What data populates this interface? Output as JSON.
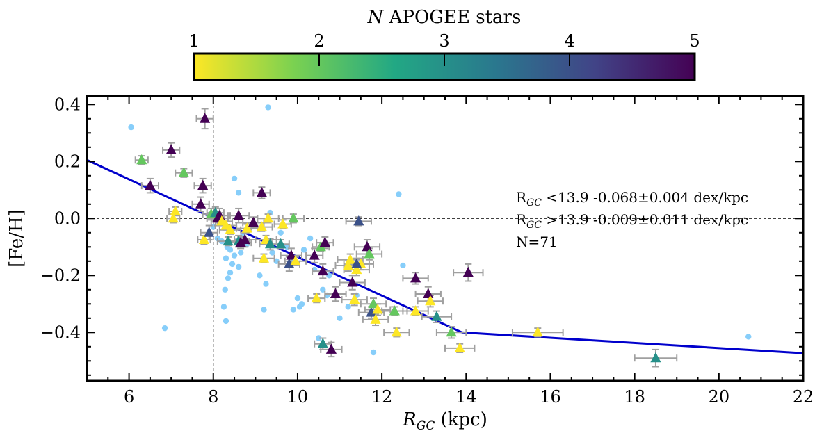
{
  "chart_data": {
    "type": "scatter",
    "xlabel": "R_GC (kpc)",
    "xlabel_main": "R",
    "xlabel_sub": "GC",
    "xlabel_unit": " (kpc)",
    "ylabel": "[Fe/H]",
    "xlim": [
      5,
      22
    ],
    "ylim": [
      -0.57,
      0.43
    ],
    "xticks": [
      6,
      8,
      10,
      12,
      14,
      16,
      18,
      20,
      22
    ],
    "yticks": [
      -0.4,
      -0.2,
      0.0,
      0.2,
      0.4
    ],
    "xtick_labels": [
      "6",
      "8",
      "10",
      "12",
      "14",
      "16",
      "18",
      "20",
      "22"
    ],
    "ytick_labels": [
      "−0.4",
      "−0.2",
      "0.0",
      "0.2",
      "0.4"
    ],
    "reference_lines": {
      "x": 8.0,
      "y": 0.0
    },
    "colorbar": {
      "label": "N APOGEE stars",
      "label_italic": "N",
      "label_rest": " APOGEE stars",
      "min": 1,
      "max": 5,
      "ticks": [
        1,
        2,
        3,
        4,
        5
      ],
      "tick_labels": [
        "1",
        "2",
        "3",
        "4",
        "5"
      ],
      "colormap": "viridis_r",
      "stops": [
        "#fde725",
        "#7ad151",
        "#22a884",
        "#2a788e",
        "#414487",
        "#440154"
      ]
    },
    "fit_lines": [
      {
        "x": [
          5,
          13.9
        ],
        "y": [
          0.2052,
          -0.4
        ],
        "color": "#0000cc"
      },
      {
        "x": [
          13.9,
          22
        ],
        "y": [
          -0.4,
          -0.4729
        ],
        "color": "#0000cc"
      }
    ],
    "annotations": [
      {
        "main": "R",
        "sub": "GC",
        "rest": " <13.9 -0.068±0.004 dex/kpc"
      },
      {
        "main": "R",
        "sub": "GC",
        "rest": " >13.9 -0.009±0.011 dex/kpc"
      },
      {
        "main": "N=71",
        "sub": "",
        "rest": ""
      }
    ],
    "background_points": {
      "color": "#87cefa",
      "x": [
        6.05,
        6.85,
        8.0,
        8.1,
        8.2,
        8.25,
        8.3,
        8.3,
        8.35,
        8.4,
        8.4,
        8.45,
        8.5,
        8.5,
        8.55,
        8.6,
        8.6,
        8.65,
        8.7,
        8.8,
        9.1,
        9.2,
        9.25,
        9.3,
        9.35,
        9.4,
        9.5,
        9.6,
        9.75,
        9.85,
        9.9,
        10.0,
        10.05,
        10.1,
        10.15,
        10.3,
        10.4,
        10.5,
        10.6,
        10.7,
        10.75,
        11.0,
        11.2,
        11.4,
        11.5,
        11.8,
        12.4,
        12.5,
        20.7,
        8.28,
        8.33,
        8.45
      ],
      "y": [
        0.32,
        -0.385,
        -0.03,
        -0.07,
        -0.08,
        -0.31,
        -0.36,
        -0.14,
        -0.21,
        -0.19,
        -0.11,
        -0.16,
        0.14,
        -0.13,
        -0.08,
        0.09,
        -0.17,
        -0.12,
        -0.06,
        -0.09,
        -0.2,
        -0.32,
        -0.23,
        0.39,
        0.02,
        -0.12,
        -0.15,
        -0.05,
        -0.1,
        -0.15,
        -0.32,
        -0.28,
        -0.31,
        -0.3,
        -0.11,
        -0.07,
        -0.18,
        -0.42,
        -0.25,
        -0.27,
        -0.2,
        -0.35,
        -0.31,
        -0.27,
        -0.16,
        -0.47,
        0.085,
        -0.165,
        -0.415,
        -0.25,
        -0.1,
        -0.04
      ]
    },
    "points": {
      "x": [
        6.3,
        6.5,
        7.0,
        7.05,
        7.1,
        7.3,
        7.7,
        7.75,
        7.78,
        7.8,
        7.9,
        7.95,
        8.05,
        8.1,
        8.15,
        8.2,
        8.3,
        8.35,
        8.4,
        8.6,
        8.6,
        8.65,
        8.8,
        8.95,
        9.15,
        9.15,
        9.2,
        9.25,
        9.3,
        9.35,
        9.6,
        9.65,
        9.8,
        9.85,
        9.9,
        9.95,
        10.4,
        10.45,
        10.55,
        10.6,
        10.65,
        10.8,
        10.9,
        11.2,
        11.25,
        11.3,
        11.35,
        11.4,
        11.45,
        11.5,
        11.65,
        11.7,
        11.75,
        11.8,
        11.85,
        11.9,
        12.3,
        12.35,
        12.8,
        12.8,
        13.1,
        13.15,
        13.3,
        13.65,
        13.85,
        14.05,
        15.7,
        18.5,
        8.75,
        10.6,
        11.4
      ],
      "y": [
        0.205,
        0.115,
        0.24,
        0.0,
        0.025,
        0.16,
        0.05,
        0.115,
        -0.075,
        0.35,
        -0.05,
        0.015,
        0.02,
        0.0,
        0.01,
        -0.01,
        -0.025,
        -0.08,
        -0.04,
        0.01,
        -0.08,
        -0.085,
        -0.035,
        -0.015,
        0.09,
        -0.03,
        -0.14,
        -0.075,
        0.0,
        -0.09,
        -0.09,
        -0.02,
        -0.16,
        -0.13,
        0.0,
        -0.15,
        -0.13,
        -0.28,
        -0.1,
        -0.44,
        -0.085,
        -0.46,
        -0.265,
        -0.165,
        -0.145,
        -0.225,
        -0.285,
        -0.18,
        -0.01,
        -0.16,
        -0.1,
        -0.125,
        -0.33,
        -0.3,
        -0.355,
        -0.32,
        -0.325,
        -0.4,
        -0.325,
        -0.21,
        -0.265,
        -0.29,
        -0.345,
        -0.4,
        -0.455,
        -0.19,
        -0.4,
        -0.49,
        -0.075,
        -0.185,
        -0.16
      ],
      "n": [
        2,
        5,
        5,
        1,
        1,
        2,
        5,
        5,
        1,
        5,
        4,
        2,
        3,
        5,
        5,
        1,
        1,
        3,
        1,
        5,
        3,
        5,
        1,
        5,
        5,
        1,
        1,
        1,
        1,
        3,
        3,
        1,
        4,
        5,
        2,
        1,
        5,
        1,
        2,
        3,
        5,
        5,
        5,
        1,
        1,
        5,
        1,
        1,
        4,
        1,
        5,
        2,
        4,
        2,
        1,
        1,
        2,
        1,
        1,
        5,
        5,
        1,
        3,
        2,
        1,
        5,
        1,
        3,
        5,
        5,
        4
      ],
      "xerr": [
        0.15,
        0.2,
        0.2,
        0.15,
        0.15,
        0.2,
        0.2,
        0.2,
        0.15,
        0.2,
        0.2,
        0.2,
        0.2,
        0.25,
        0.25,
        0.25,
        0.25,
        0.25,
        0.25,
        0.25,
        0.25,
        0.25,
        0.25,
        0.25,
        0.2,
        0.25,
        0.25,
        0.25,
        0.25,
        0.25,
        0.2,
        0.2,
        0.25,
        0.25,
        0.25,
        0.25,
        0.2,
        0.2,
        0.2,
        0.2,
        0.2,
        0.25,
        0.25,
        0.3,
        0.3,
        0.3,
        0.3,
        0.3,
        0.3,
        0.3,
        0.3,
        0.3,
        0.3,
        0.3,
        0.3,
        0.3,
        0.3,
        0.3,
        0.3,
        0.3,
        0.3,
        0.3,
        0.35,
        0.35,
        0.35,
        0.35,
        0.6,
        0.5,
        0.25,
        0.25,
        0.3
      ],
      "yerr": [
        0.015,
        0.025,
        0.025,
        0.015,
        0.015,
        0.015,
        0.025,
        0.025,
        0.015,
        0.035,
        0.025,
        0.02,
        0.02,
        0.025,
        0.025,
        0.015,
        0.015,
        0.015,
        0.015,
        0.025,
        0.02,
        0.02,
        0.015,
        0.02,
        0.02,
        0.015,
        0.015,
        0.015,
        0.015,
        0.02,
        0.015,
        0.015,
        0.025,
        0.025,
        0.015,
        0.015,
        0.025,
        0.015,
        0.015,
        0.02,
        0.02,
        0.025,
        0.025,
        0.02,
        0.02,
        0.025,
        0.02,
        0.02,
        0.015,
        0.02,
        0.025,
        0.02,
        0.02,
        0.02,
        0.02,
        0.02,
        0.015,
        0.015,
        0.015,
        0.02,
        0.025,
        0.02,
        0.02,
        0.02,
        0.015,
        0.03,
        0.015,
        0.03,
        0.025,
        0.025,
        0.02
      ]
    }
  }
}
